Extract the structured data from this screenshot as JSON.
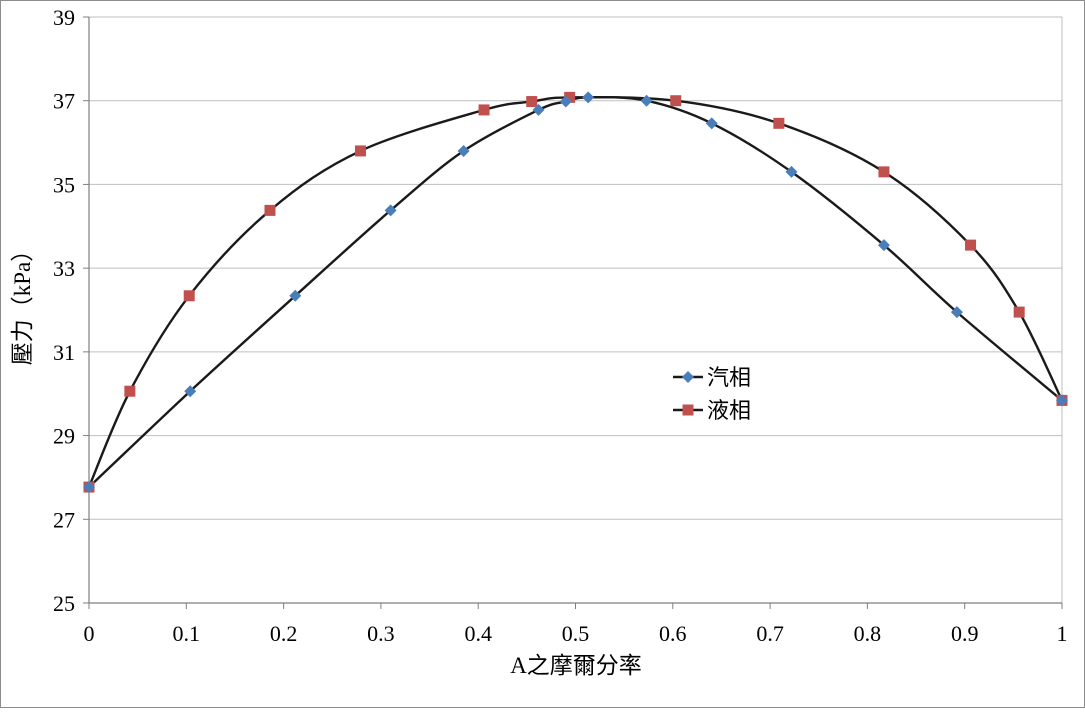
{
  "chart_data": {
    "type": "line",
    "xlabel": "A之摩爾分率",
    "ylabel": "壓力（kPa）",
    "xlim": [
      0,
      1
    ],
    "ylim": [
      25,
      39
    ],
    "x_ticks": [
      0,
      0.1,
      0.2,
      0.3,
      0.4,
      0.5,
      0.6,
      0.7,
      0.8,
      0.9,
      1
    ],
    "y_ticks": [
      25,
      27,
      29,
      31,
      33,
      35,
      37,
      39
    ],
    "grid": "horizontal",
    "legend_position": "center-right",
    "series": [
      {
        "name": "汽相",
        "color": "#4a7ebb",
        "marker": "diamond",
        "points": [
          [
            0,
            27.77
          ],
          [
            0.104,
            30.06
          ],
          [
            0.212,
            32.34
          ],
          [
            0.31,
            34.38
          ],
          [
            0.385,
            35.8
          ],
          [
            0.462,
            36.78
          ],
          [
            0.49,
            36.98
          ],
          [
            0.513,
            37.08
          ],
          [
            0.573,
            37.0
          ],
          [
            0.64,
            36.46
          ],
          [
            0.722,
            35.3
          ],
          [
            0.817,
            33.55
          ],
          [
            0.892,
            31.95
          ],
          [
            1,
            29.84
          ]
        ]
      },
      {
        "name": "液相",
        "color": "#c0504d",
        "marker": "square",
        "points": [
          [
            0,
            27.77
          ],
          [
            0.042,
            30.06
          ],
          [
            0.103,
            32.34
          ],
          [
            0.186,
            34.38
          ],
          [
            0.279,
            35.8
          ],
          [
            0.406,
            36.78
          ],
          [
            0.455,
            36.98
          ],
          [
            0.494,
            37.08
          ],
          [
            0.603,
            37.0
          ],
          [
            0.709,
            36.46
          ],
          [
            0.817,
            35.3
          ],
          [
            0.906,
            33.55
          ],
          [
            0.956,
            31.95
          ],
          [
            1,
            29.84
          ]
        ]
      }
    ]
  }
}
